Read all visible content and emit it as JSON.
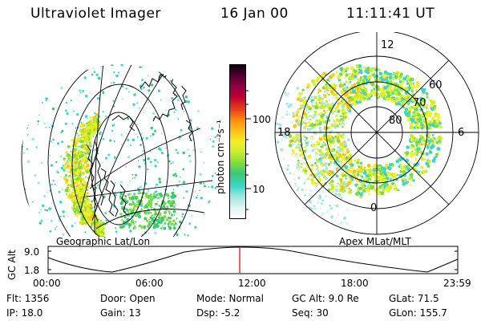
{
  "header": {
    "title": "Ultraviolet Imager",
    "date": "16 Jan 00",
    "time": "11:11:41 UT"
  },
  "colorbar": {
    "label": "photon cm⁻²s⁻¹",
    "ticks": [
      {
        "label": "100",
        "value": 100
      },
      {
        "label": "10",
        "value": 10
      }
    ],
    "colors": [
      "#ffffff",
      "#e0f4f4",
      "#9ee8e0",
      "#3cd6c8",
      "#38c878",
      "#7edc3a",
      "#c8ee30",
      "#f2f020",
      "#ffc018",
      "#ff8c10",
      "#e84018",
      "#c00030",
      "#900040",
      "#500030",
      "#100010"
    ]
  },
  "geo_panel": {
    "caption": "Geographic Lat/Lon"
  },
  "polar_panel": {
    "caption": "Apex MLat/MLT",
    "mlt_labels": [
      {
        "label": "12"
      },
      {
        "label": "18"
      },
      {
        "label": "6"
      },
      {
        "label": "0"
      }
    ],
    "lat_labels": [
      {
        "label": "60"
      },
      {
        "label": "70"
      },
      {
        "label": "80"
      }
    ]
  },
  "timeline": {
    "ylabel": "GC Alt",
    "y_ticks": [
      "9.0",
      "1.8"
    ],
    "x_ticks": [
      "00:00",
      "06:00",
      "12:00",
      "18:00",
      "23:59"
    ],
    "marker_time": "11:11",
    "marker_color": "#e00000"
  },
  "status": {
    "flt": "Flt: 1356",
    "ip": "IP: 18.0",
    "door": "Door: Open",
    "gain": "Gain: 13",
    "mode": "Mode: Normal",
    "dsp": "Dsp:   -5.2",
    "gc_alt": "GC Alt: 9.0 Re",
    "seq": "Seq: 30",
    "glat": "GLat:  71.5",
    "glon": "GLon: 155.7"
  }
}
